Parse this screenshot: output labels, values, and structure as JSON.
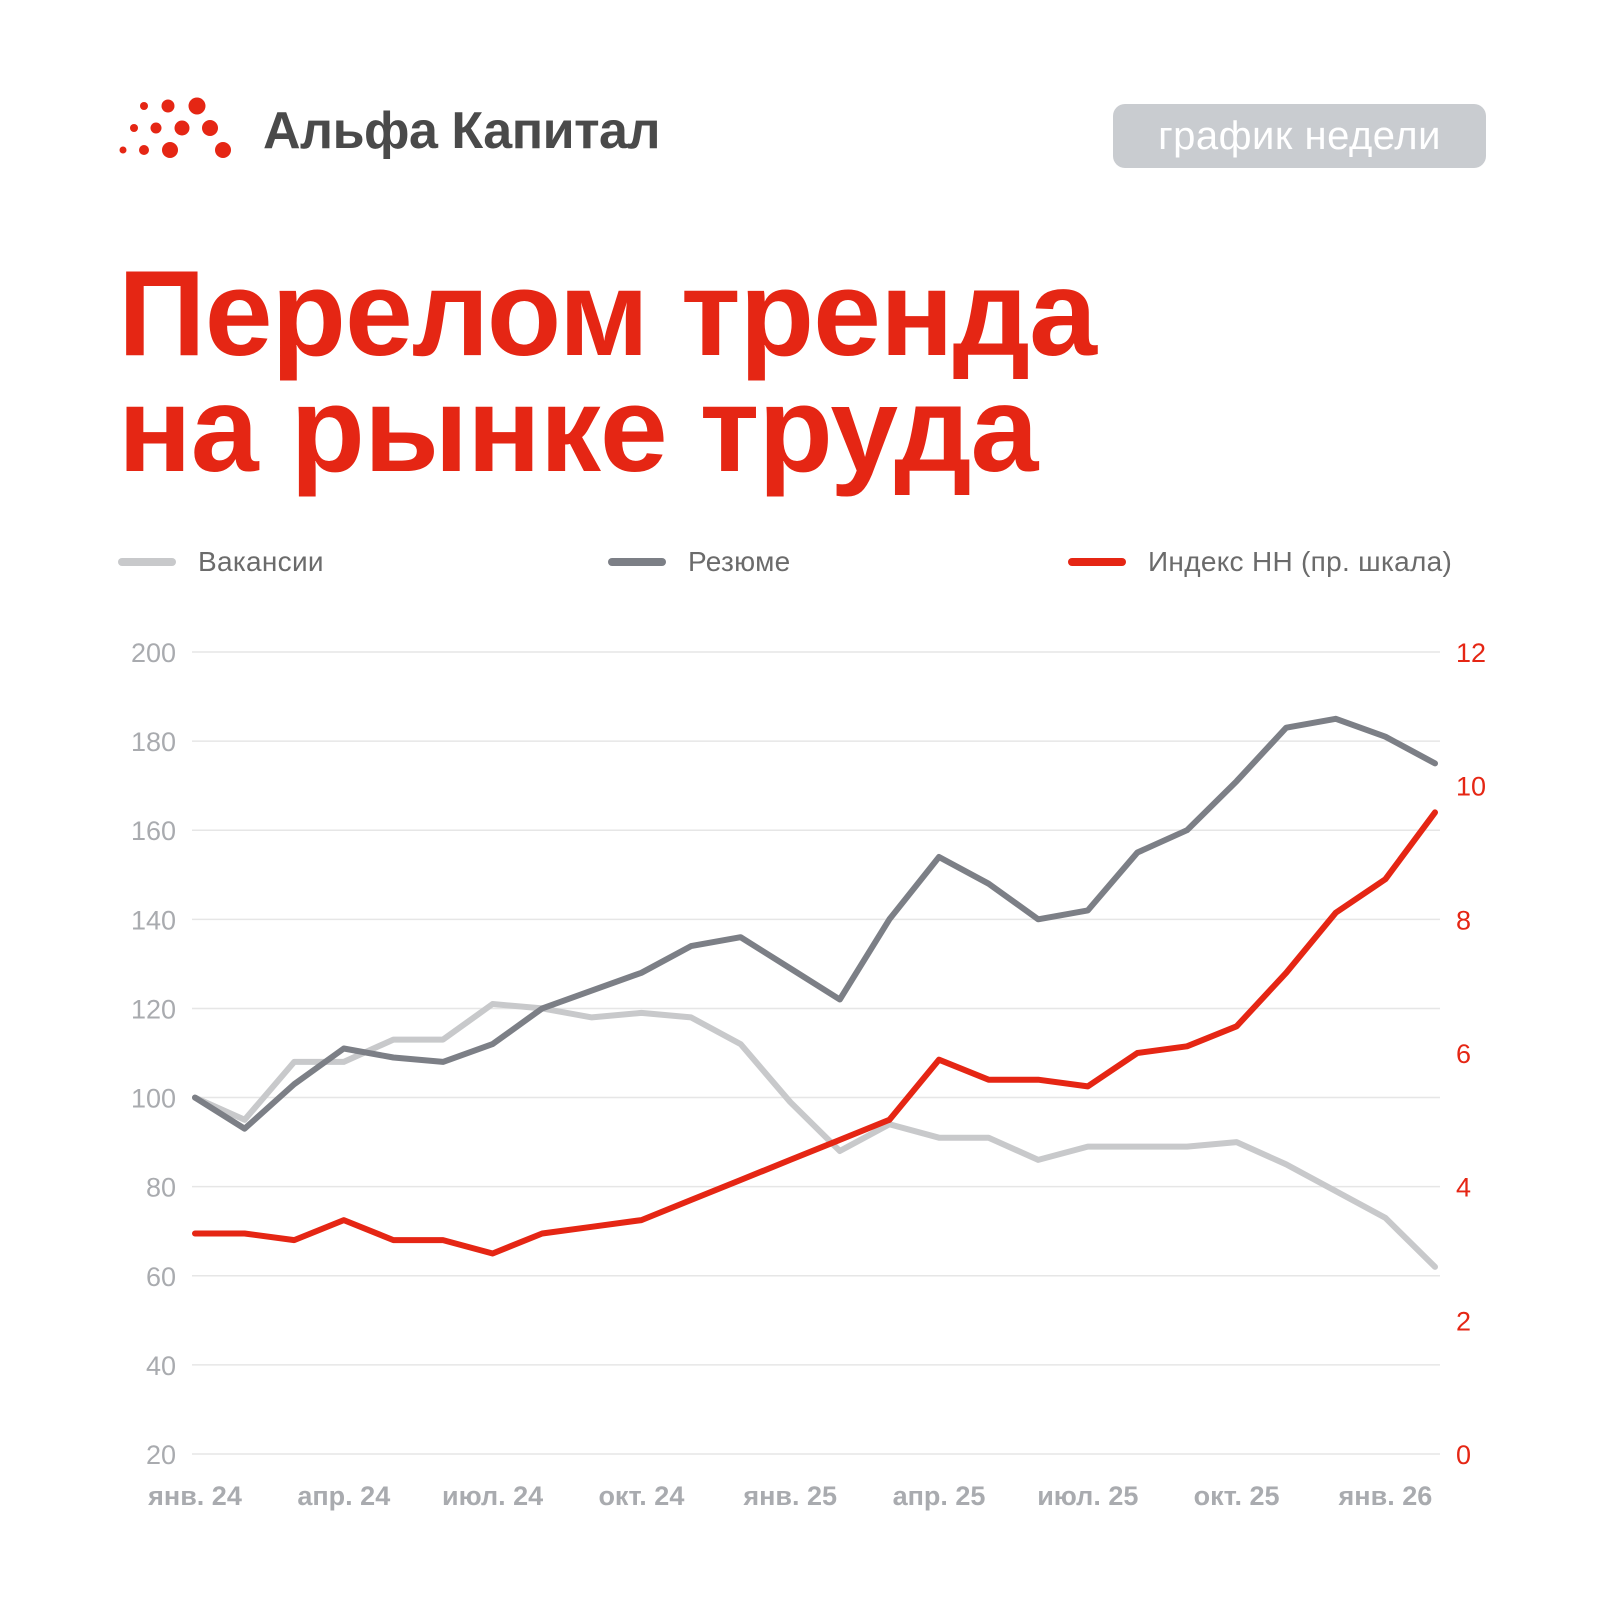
{
  "header": {
    "logo_text": "Альфа Капитал",
    "badge_label": "график недели"
  },
  "title": {
    "line1": "Перелом тренда",
    "line2": "на рынке труда"
  },
  "legend": [
    {
      "label": "Вакансии",
      "color": "#c8c9cb"
    },
    {
      "label": "Резюме",
      "color": "#7c7f86"
    },
    {
      "label": "Индекс HH (пр. шкала)",
      "color": "#e52614"
    }
  ],
  "colors": {
    "brand_red": "#e52614",
    "logo_text": "#4a4a4a",
    "badge_bg": "#c9ccd0",
    "grid": "#e6e6e6",
    "tick_text": "#a9abaf"
  },
  "chart_data": {
    "type": "line",
    "title": "Перелом тренда на рынке труда",
    "x_tick_labels": [
      "янв. 24",
      "апр. 24",
      "июл. 24",
      "окт. 24",
      "янв. 25",
      "апр. 25",
      "июл. 25",
      "окт. 25",
      "янв. 26"
    ],
    "x": [
      "2024-01",
      "2024-02",
      "2024-03",
      "2024-04",
      "2024-05",
      "2024-06",
      "2024-07",
      "2024-08",
      "2024-09",
      "2024-10",
      "2024-11",
      "2024-12",
      "2025-01",
      "2025-02",
      "2025-03",
      "2025-04",
      "2025-05",
      "2025-06",
      "2025-07",
      "2025-08",
      "2025-09",
      "2025-10",
      "2025-11",
      "2025-12",
      "2026-01",
      "2026-02"
    ],
    "y_left": {
      "min": 20,
      "max": 200,
      "ticks": [
        200,
        180,
        160,
        140,
        120,
        100,
        80,
        60,
        40,
        20
      ]
    },
    "y_right": {
      "min": 0,
      "max": 12,
      "ticks": [
        12,
        10,
        8,
        6,
        4,
        2,
        0
      ]
    },
    "grid": true,
    "legend_position": "top",
    "series": [
      {
        "name": "Вакансии",
        "axis": "left",
        "color": "#c8c9cb",
        "values": [
          100,
          95,
          108,
          108,
          113,
          113,
          121,
          120,
          118,
          119,
          118,
          112,
          99,
          88,
          94,
          91,
          91,
          86,
          89,
          89,
          89,
          90,
          85,
          79,
          73,
          62
        ]
      },
      {
        "name": "Резюме",
        "axis": "left",
        "color": "#7c7f86",
        "values": [
          100,
          93,
          103,
          111,
          109,
          108,
          112,
          120,
          124,
          128,
          134,
          136,
          129,
          122,
          140,
          154,
          148,
          140,
          142,
          155,
          160,
          171,
          183,
          185,
          181,
          175
        ]
      },
      {
        "name": "Индекс HH (пр. шкала)",
        "axis": "right",
        "color": "#e52614",
        "values": [
          3.3,
          3.3,
          3.2,
          3.5,
          3.2,
          3.2,
          3.0,
          3.3,
          3.4,
          3.5,
          3.8,
          4.1,
          4.4,
          4.7,
          5.0,
          5.9,
          5.6,
          5.6,
          5.5,
          6.0,
          6.1,
          6.4,
          7.2,
          8.1,
          8.6,
          9.6
        ]
      }
    ]
  }
}
